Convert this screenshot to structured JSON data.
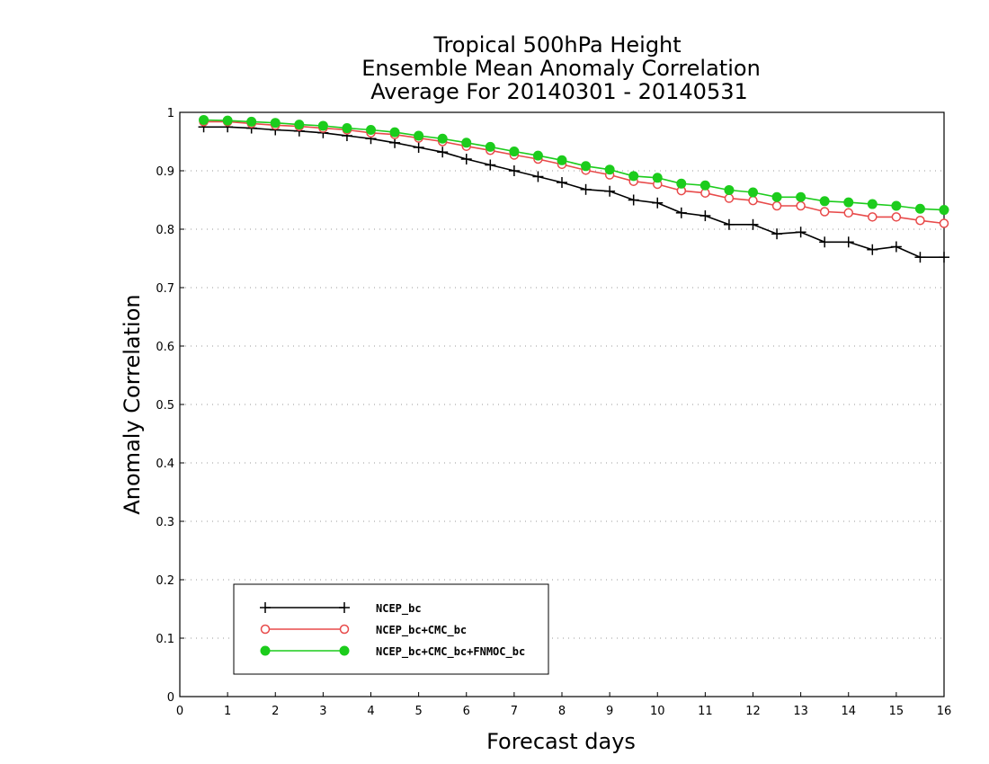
{
  "chart_data": {
    "type": "line",
    "title": [
      "Tropical 500hPa Height",
      "Ensemble Mean Anomaly Correlation",
      "Average For 20140301 - 20140531"
    ],
    "xlabel": "Forecast days",
    "ylabel": "Anomaly Correlation",
    "xlim": [
      0,
      16
    ],
    "ylim": [
      0,
      1
    ],
    "xticks": [
      "0",
      "1",
      "2",
      "3",
      "4",
      "5",
      "6",
      "7",
      "8",
      "9",
      "10",
      "11",
      "12",
      "13",
      "14",
      "15",
      "16"
    ],
    "yticks": [
      "0",
      "0.1",
      "0.2",
      "0.3",
      "0.4",
      "0.5",
      "0.6",
      "0.7",
      "0.8",
      "0.9",
      "1"
    ],
    "grid": "horizontal dotted",
    "legend_placement": "bottom-left",
    "x": [
      0.5,
      1,
      1.5,
      2,
      2.5,
      3,
      3.5,
      4,
      4.5,
      5,
      5.5,
      6,
      6.5,
      7,
      7.5,
      8,
      8.5,
      9,
      9.5,
      10,
      10.5,
      11,
      11.5,
      12,
      12.5,
      13,
      13.5,
      14,
      14.5,
      15,
      15.5,
      16
    ],
    "series": [
      {
        "name": "NCEP_bc",
        "color": "#000000",
        "marker": "plus",
        "values": [
          0.975,
          0.975,
          0.973,
          0.97,
          0.968,
          0.965,
          0.96,
          0.955,
          0.948,
          0.94,
          0.932,
          0.92,
          0.91,
          0.9,
          0.89,
          0.88,
          0.868,
          0.865,
          0.85,
          0.845,
          0.828,
          0.823,
          0.808,
          0.808,
          0.792,
          0.795,
          0.778,
          0.778,
          0.765,
          0.77,
          0.752,
          0.752
        ]
      },
      {
        "name": "NCEP_bc+CMC_bc",
        "color": "#e84a4a",
        "marker": "open-circle",
        "values": [
          0.984,
          0.984,
          0.981,
          0.978,
          0.976,
          0.973,
          0.97,
          0.965,
          0.962,
          0.956,
          0.95,
          0.942,
          0.935,
          0.927,
          0.92,
          0.911,
          0.901,
          0.893,
          0.882,
          0.877,
          0.866,
          0.862,
          0.853,
          0.849,
          0.84,
          0.84,
          0.83,
          0.828,
          0.821,
          0.821,
          0.815,
          0.81
        ]
      },
      {
        "name": "NCEP_bc+CMC_bc+FNMOC_bc",
        "color": "#1ccc1c",
        "marker": "filled-circle",
        "values": [
          0.987,
          0.986,
          0.984,
          0.982,
          0.979,
          0.977,
          0.973,
          0.97,
          0.966,
          0.96,
          0.955,
          0.948,
          0.941,
          0.933,
          0.926,
          0.918,
          0.908,
          0.902,
          0.891,
          0.888,
          0.878,
          0.875,
          0.867,
          0.863,
          0.855,
          0.855,
          0.848,
          0.846,
          0.843,
          0.84,
          0.835,
          0.833
        ]
      }
    ]
  }
}
